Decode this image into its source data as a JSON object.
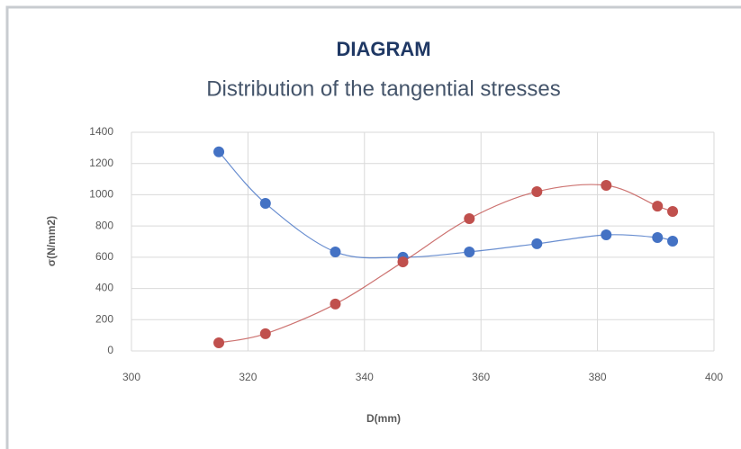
{
  "chart_data": {
    "type": "scatter",
    "title": "DIAGRAM",
    "subtitle": "Distribution of the tangential stresses",
    "x_label": "D(mm)",
    "y_label": "σ(N/mm2)",
    "x": [
      315,
      323,
      335,
      346.6,
      358,
      369.6,
      381.5,
      390.3,
      392.9
    ],
    "series": [
      {
        "color": "#4472c4",
        "values": [
          1275,
          945,
          634,
          600,
          634,
          686,
          743,
          726,
          703
        ]
      },
      {
        "color": "#c0504d",
        "values": [
          52,
          110,
          300,
          570,
          847,
          1020,
          1060,
          927,
          893
        ]
      }
    ],
    "xlim": [
      300,
      400
    ],
    "xticks": [
      300,
      320,
      340,
      360,
      380,
      400
    ],
    "ylim": [
      0,
      1400
    ],
    "yticks": [
      0,
      200,
      400,
      600,
      800,
      1000,
      1200,
      1400
    ],
    "grid": true,
    "smooth": true
  }
}
